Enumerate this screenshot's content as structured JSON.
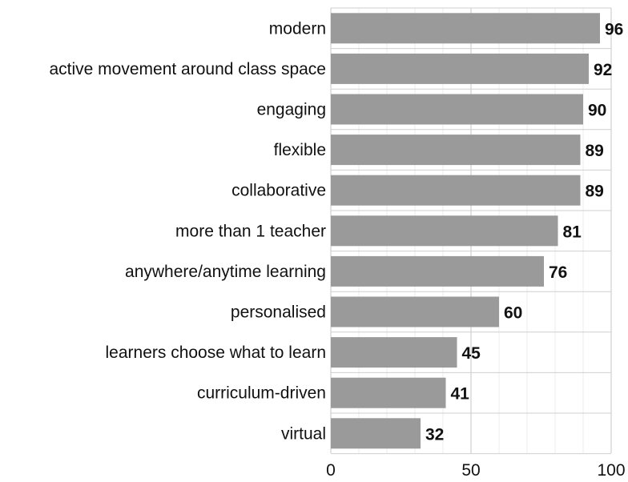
{
  "chart_data": {
    "type": "bar",
    "orientation": "horizontal",
    "categories": [
      "modern",
      "active movement around class space",
      "engaging",
      "flexible",
      "collaborative",
      "more than 1 teacher",
      "anywhere/anytime learning",
      "personalised",
      "learners choose what to learn",
      "curriculum-driven",
      "virtual"
    ],
    "values": [
      96,
      92,
      90,
      89,
      89,
      81,
      76,
      60,
      45,
      41,
      32
    ],
    "title": "",
    "xlabel": "",
    "ylabel": "",
    "xlim": [
      0,
      100
    ],
    "xticks": [
      0,
      50,
      100
    ],
    "tick_labels": [
      "0",
      "50",
      "100"
    ],
    "grid": true,
    "legend": "none",
    "colors": {
      "bar": "#9a9a9a",
      "grid_major": "#cfcfcf",
      "grid_minor": "#ececec",
      "text": "#111111"
    }
  }
}
